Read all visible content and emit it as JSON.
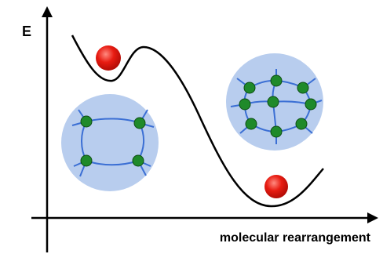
{
  "axes": {
    "y_label": "E",
    "x_label": "molecular rearrangement"
  }
}
